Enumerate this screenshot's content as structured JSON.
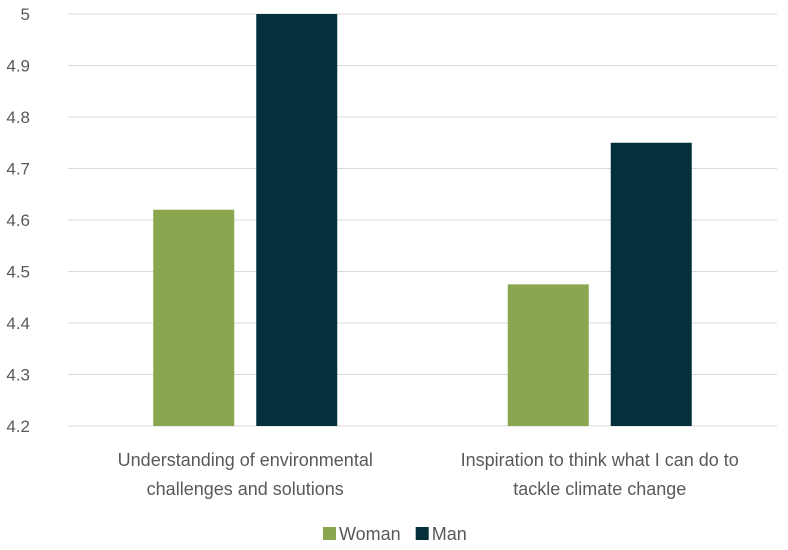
{
  "chart_data": {
    "type": "bar",
    "categories": [
      [
        "Understanding of environmental",
        "challenges and solutions"
      ],
      [
        "Inspiration to think what I can do to",
        "tackle climate change"
      ]
    ],
    "series": [
      {
        "name": "Woman",
        "color": "#8aa64f",
        "values": [
          4.62,
          4.475
        ]
      },
      {
        "name": "Man",
        "color": "#04303b",
        "values": [
          5.0,
          4.75
        ]
      }
    ],
    "yticks": [
      "4.2",
      "4.3",
      "4.4",
      "4.5",
      "4.6",
      "4.7",
      "4.8",
      "4.9",
      "5"
    ],
    "ylim": [
      4.2,
      5.0
    ],
    "grid": true,
    "legend": "bottom"
  }
}
